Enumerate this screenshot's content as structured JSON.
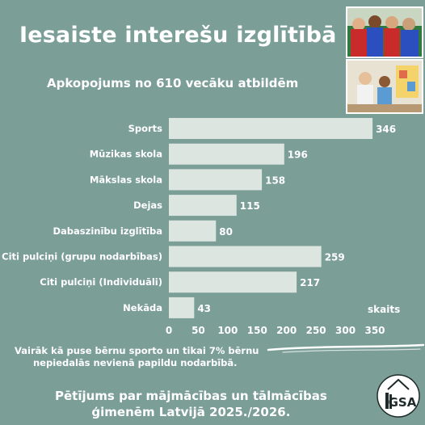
{
  "header": {
    "title": "Iesaiste interešu izglītībā",
    "subtitle": "Apkopojums no 610 vecāku atbildēm"
  },
  "chart_data": {
    "type": "bar",
    "orientation": "horizontal",
    "categories": [
      "Sports",
      "Mūzikas skola",
      "Mākslas skola",
      "Dejas",
      "Dabaszinību izglītība",
      "Citi pulciņi (grupu nodarbības)",
      "Citi pulciņi (Individuāli)",
      "Nekāda"
    ],
    "values": [
      346,
      196,
      158,
      115,
      80,
      259,
      217,
      43
    ],
    "xlabel": "skaits",
    "xlim": [
      0,
      350
    ],
    "xticks": [
      0,
      50,
      100,
      150,
      200,
      250,
      300,
      350
    ],
    "grid": false,
    "bar_color": "#dde5e1",
    "label_color": "#ffffff"
  },
  "note": {
    "line1": "Vairāk kā puse bērnu sporto un tikai 7% bērnu",
    "line2": "nepiedalās nevienā papildu nodarbībā."
  },
  "footer": {
    "line1": "Pētījums par mājmācības un tālmācības",
    "line2": "ģimenēm Latvijā 2025./2026."
  },
  "logo": {
    "text": "GSA"
  },
  "colors": {
    "background": "#7b9e97",
    "bars": "#dde5e1",
    "text": "#ffffff"
  }
}
